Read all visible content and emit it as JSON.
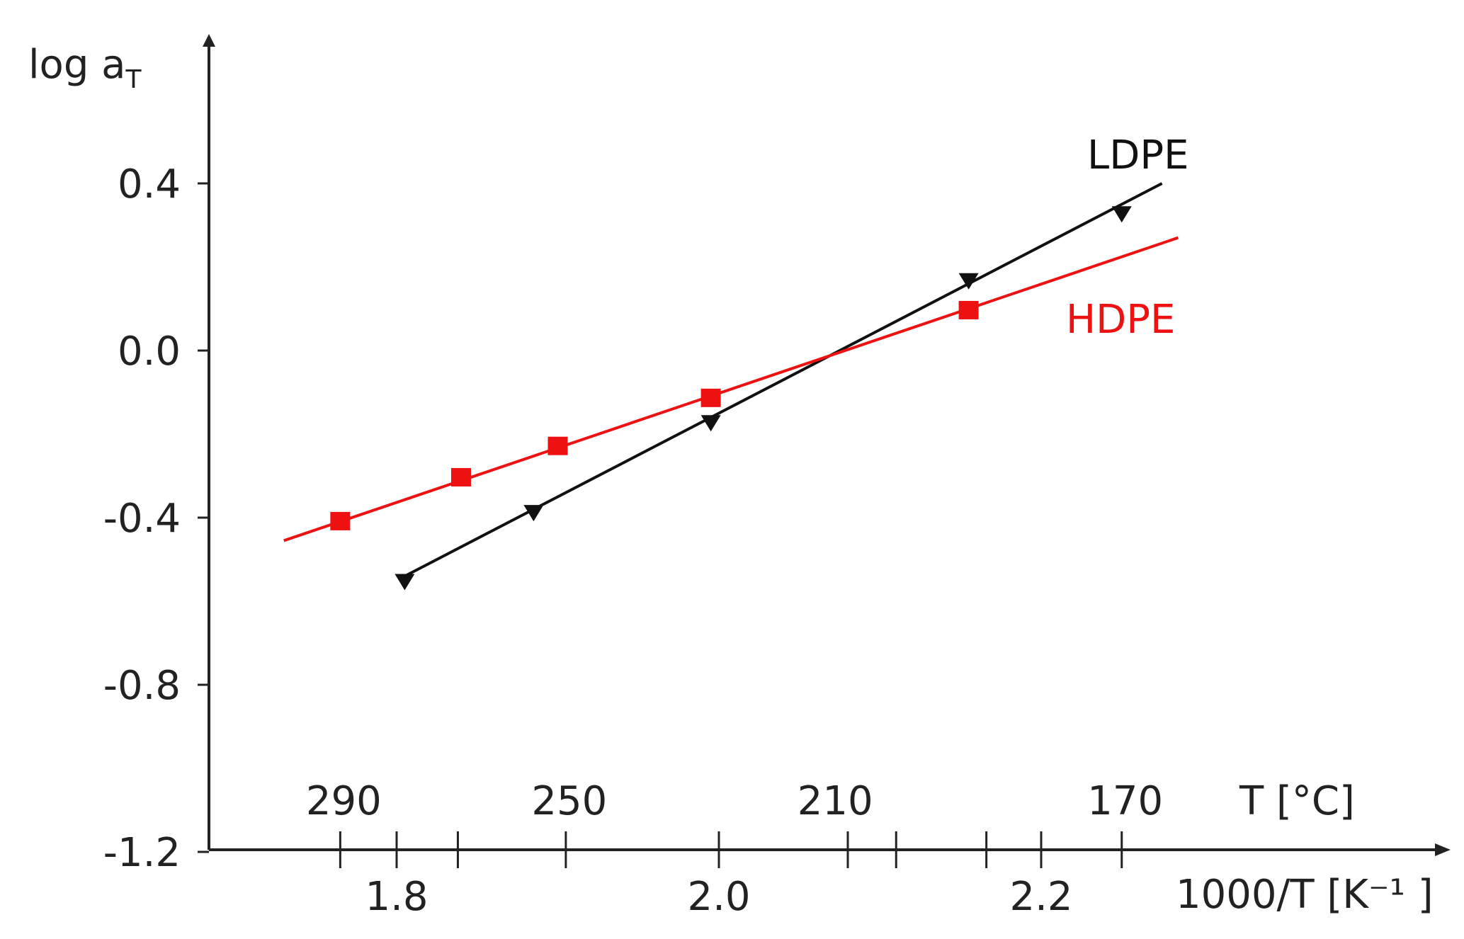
{
  "chart_data": {
    "type": "line",
    "title": "",
    "ylabel": {
      "main": "log a",
      "sub": "T"
    },
    "xlabel": "1000/T [K⁻¹ ]",
    "top_axis_label": "T [°C]",
    "xlim": [
      1.69,
      2.45
    ],
    "ylim": [
      -1.2,
      0.7
    ],
    "y_ticks": [
      0.4,
      0.0,
      -0.4,
      -0.8,
      -1.2
    ],
    "y_tick_labels": [
      "0.4",
      "0.0",
      "-0.4",
      "-0.8",
      "-1.2"
    ],
    "x_ticks_labeled": [
      1.8,
      2.0,
      2.2
    ],
    "x_tick_labels": [
      "1.8",
      "2.0",
      "2.2"
    ],
    "x_ticks_minor": [
      1.765,
      1.838,
      1.905,
      2.08,
      2.11,
      2.166,
      2.25
    ],
    "temperature_ticks": [
      {
        "label": "290",
        "x": 1.765
      },
      {
        "label": "250",
        "x": 1.905
      },
      {
        "label": "210",
        "x": 2.07
      },
      {
        "label": "170",
        "x": 2.25
      }
    ],
    "grid": false,
    "series": [
      {
        "name": "LDPE",
        "color": "#111111",
        "marker": "triangle-down",
        "points": [
          {
            "x": 1.805,
            "y": -0.55
          },
          {
            "x": 1.885,
            "y": -0.385
          },
          {
            "x": 1.995,
            "y": -0.17
          },
          {
            "x": 2.155,
            "y": 0.17
          },
          {
            "x": 2.25,
            "y": 0.33
          }
        ],
        "fit_line": {
          "x": [
            1.805,
            2.275
          ],
          "y": [
            -0.54,
            0.4
          ]
        }
      },
      {
        "name": "HDPE",
        "color": "#ee1111",
        "marker": "square",
        "points": [
          {
            "x": 1.765,
            "y": -0.41
          },
          {
            "x": 1.84,
            "y": -0.305
          },
          {
            "x": 1.9,
            "y": -0.23
          },
          {
            "x": 1.995,
            "y": -0.115
          },
          {
            "x": 2.155,
            "y": 0.095
          }
        ],
        "fit_line": {
          "x": [
            1.73,
            2.285
          ],
          "y": [
            -0.455,
            0.27
          ]
        }
      }
    ]
  }
}
